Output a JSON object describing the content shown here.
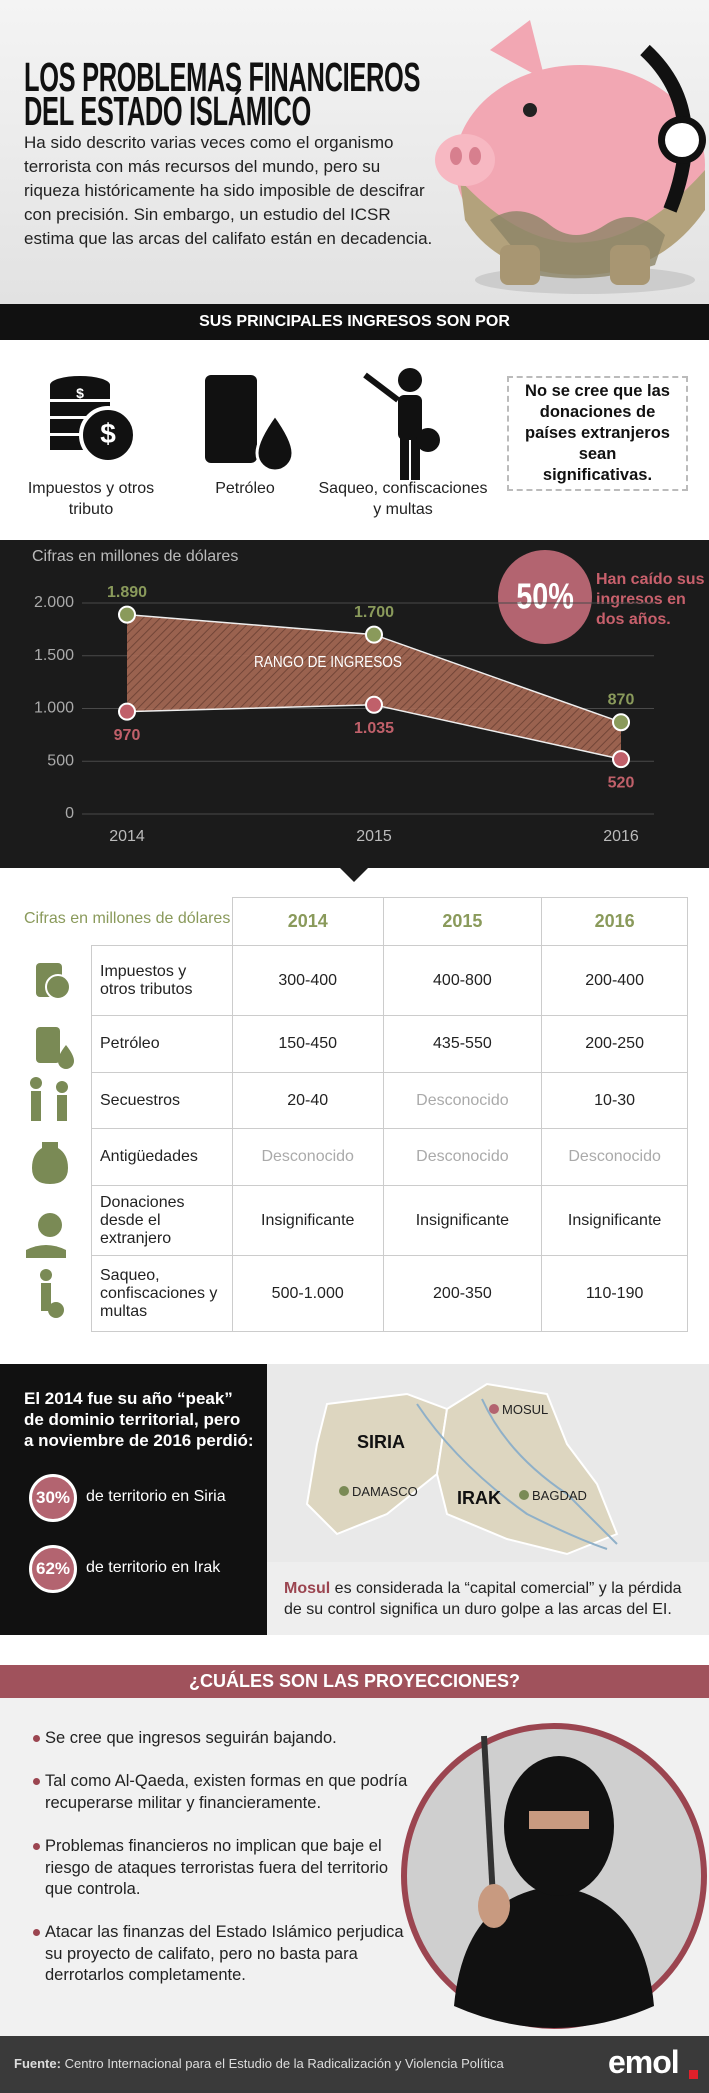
{
  "header": {
    "title": [
      "LOS PROBLEMAS FINANCIEROS",
      "DEL ESTADO ISLÁMICO"
    ],
    "text": "Ha sido descrito varias veces como el organismo terrorista con más recursos del mundo, pero su riqueza históricamente ha sido imposible de descifrar con precisión. Sin embargo, un estudio del ICSR estima que las arcas del califato están en decadencia."
  },
  "income_sources": {
    "title": "SUS PRINCIPALES INGRESOS SON POR",
    "items": [
      "Impuestos y otros tributo",
      "Petróleo",
      "Saqueo, confiscaciones y multas"
    ],
    "note": "No se cree que las donaciones de países extranjeros sean significativas."
  },
  "chart_data": {
    "type": "range",
    "ylabel": "Cifras en millones de dólares",
    "categories": [
      "2014",
      "2015",
      "2016"
    ],
    "series": [
      {
        "color": "#8a9a5b",
        "values": [
          1890,
          1700,
          870
        ],
        "value_labels": [
          "1.890",
          "1.700",
          "870"
        ]
      },
      {
        "color": "#c0606a",
        "values": [
          970,
          1035,
          520
        ],
        "value_labels": [
          "970",
          "1.035",
          "520"
        ]
      }
    ],
    "ylim": [
      0,
      2000
    ],
    "yticks": [
      0,
      500,
      {
        "value": 1000,
        "label": "1.000"
      },
      {
        "value": 1500,
        "label": "1.500"
      },
      {
        "value": 2000,
        "label": "2.000"
      }
    ],
    "grid": true,
    "band_label": "RANGO DE INGRESOS",
    "stat": "50%",
    "stat_text": "Han caído sus ingresos en dos años."
  },
  "table": {
    "caption": "Cifras en millones de dólares",
    "columns": [
      "2014",
      "2015",
      "2016"
    ],
    "rows": [
      [
        "Impuestos y otros tributos",
        "300-400",
        "400-800",
        "200-400"
      ],
      [
        "Petróleo",
        "150-450",
        "435-550",
        "200-250"
      ],
      [
        "Secuestros",
        "20-40",
        "Desconocido",
        "10-30"
      ],
      [
        "Antigüedades",
        "Desconocido",
        "Desconocido",
        "Desconocido"
      ],
      [
        "Donaciones desde el extranjero",
        "Insignificante",
        "Insignificante",
        "Insignificante"
      ],
      [
        "Saqueo, confiscaciones y multas",
        "500-1.000",
        "200-350",
        "110-190"
      ]
    ]
  },
  "territory": {
    "text": "El 2014 fue su año “peak” de dominio territorial, pero a noviembre de 2016 perdió:",
    "stats": [
      {
        "value": "30%",
        "text": "de territorio en Siria"
      },
      {
        "value": "62%",
        "text": "de territorio en Irak"
      }
    ],
    "map": {
      "countries": [
        "SIRIA",
        "IRAK"
      ],
      "cities": [
        "MOSUL",
        "DAMASCO",
        "BAGDAD"
      ]
    },
    "caption_highlight": "Mosul",
    "caption": "es considerada la “capital comercial” y la pérdida de su control significa un duro golpe a las arcas del EI."
  },
  "projections": {
    "title": "¿CUÁLES SON LAS PROYECCIONES?",
    "bullets": [
      "Se cree que ingresos seguirán bajando.",
      "Tal como Al-Qaeda, existen formas en que podría recuperarse militar y financieramente.",
      "Problemas financieros no implican que baje el riesgo de ataques terroristas fuera del territorio que controla.",
      "Atacar las finanzas del Estado Islámico perjudica su proyecto de califato, pero no basta para derrotarlos completamente."
    ]
  },
  "footer": {
    "source_label": "Fuente:",
    "source": "Centro Internacional para el Estudio de la Radicalización y Violencia Política",
    "brand": "emol"
  }
}
